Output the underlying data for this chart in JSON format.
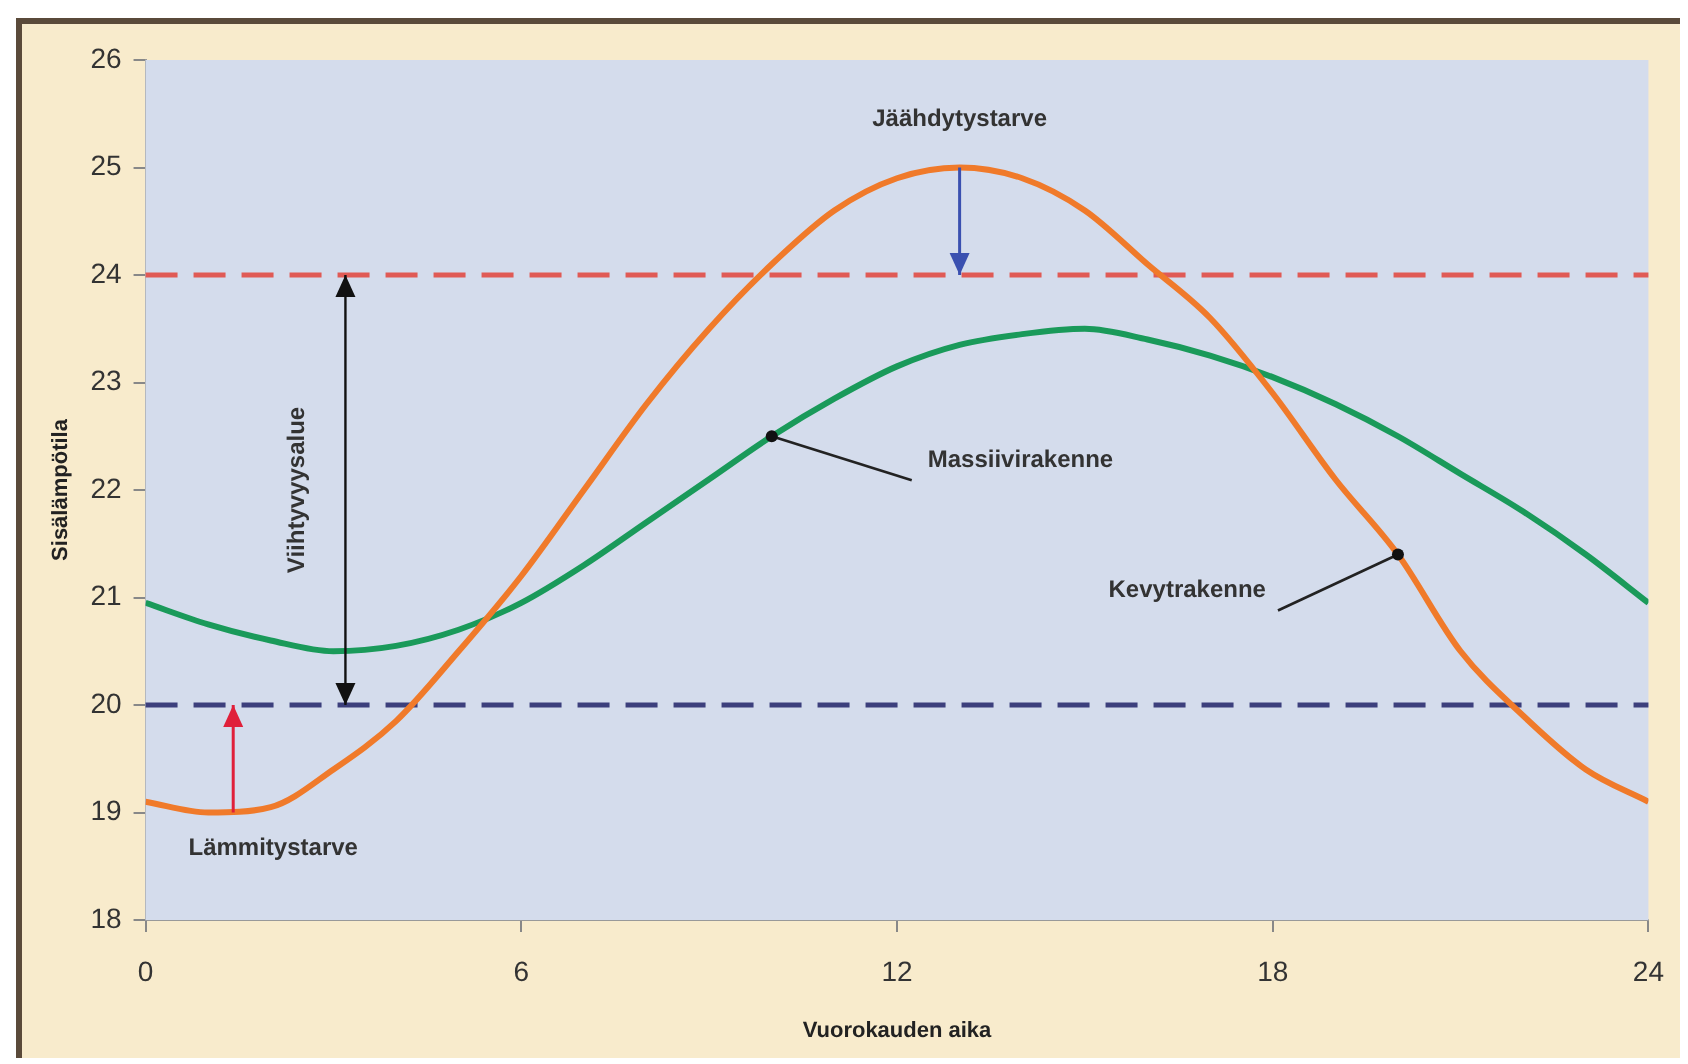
{
  "chart_data": {
    "type": "line",
    "xlabel": "Vuorokauden aika",
    "ylabel": "Sisälämpötila",
    "x": [
      0,
      1,
      2,
      3,
      4,
      5,
      6,
      7,
      8,
      9,
      10,
      11,
      12,
      13,
      14,
      15,
      16,
      17,
      18,
      19,
      20,
      21,
      22,
      23,
      24
    ],
    "series": [
      {
        "name": "Kevytrakenne",
        "color": "#f07a2a",
        "values": [
          19.1,
          19.0,
          19.05,
          19.4,
          19.85,
          20.5,
          21.2,
          22.0,
          22.8,
          23.5,
          24.1,
          24.6,
          24.9,
          25.0,
          24.9,
          24.6,
          24.1,
          23.6,
          22.9,
          22.1,
          21.4,
          20.5,
          19.9,
          19.4,
          19.1
        ]
      },
      {
        "name": "Massiivirakenne",
        "color": "#1a9a5a",
        "values": [
          20.95,
          20.75,
          20.6,
          20.5,
          20.55,
          20.7,
          20.95,
          21.3,
          21.7,
          22.1,
          22.5,
          22.85,
          23.15,
          23.35,
          23.45,
          23.5,
          23.4,
          23.25,
          23.05,
          22.8,
          22.5,
          22.15,
          21.8,
          21.4,
          20.95
        ]
      }
    ],
    "xlim": [
      0,
      24
    ],
    "xticks": [
      0,
      6,
      12,
      18,
      24
    ],
    "ylim": [
      18,
      26
    ],
    "yticks": [
      18,
      19,
      20,
      21,
      22,
      23,
      24,
      25,
      26
    ],
    "ref_lines": [
      {
        "axis": "y",
        "value": 24,
        "color": "#e05a55",
        "line_style": "dashed"
      },
      {
        "axis": "y",
        "value": 20,
        "color": "#3c3f7c",
        "line_style": "dashed"
      }
    ],
    "annotations": [
      {
        "text": "Jäähdytystarve",
        "x": 13,
        "y": 25
      },
      {
        "text": "Lämmitystarve",
        "x": 1.4,
        "y": 19
      },
      "Viihtyvyysalue"
    ],
    "grid": false,
    "legend": false,
    "marker": "none",
    "line_style": "solid"
  }
}
